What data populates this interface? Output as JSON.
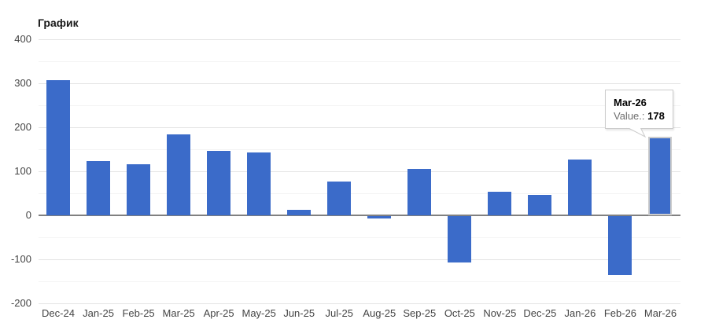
{
  "chart_data": {
    "type": "bar",
    "title": "График",
    "categories": [
      "Dec-24",
      "Jan-25",
      "Feb-25",
      "Mar-25",
      "Apr-25",
      "May-25",
      "Jun-25",
      "Jul-25",
      "Aug-25",
      "Sep-25",
      "Oct-25",
      "Nov-25",
      "Dec-25",
      "Jan-26",
      "Feb-26",
      "Mar-26"
    ],
    "values": [
      307,
      124,
      116,
      184,
      146,
      143,
      12,
      77,
      -5,
      106,
      -106,
      54,
      46,
      126,
      -134,
      178
    ],
    "yticks": [
      400,
      300,
      200,
      100,
      0,
      -100,
      -200
    ],
    "ylim": [
      -200,
      400
    ],
    "grid": true,
    "legend_position": "none",
    "bar_color": "#3b6bc9",
    "hovered_index": 15,
    "tooltip": {
      "label": "Mar-26",
      "value_name": "Value.:",
      "value": "178"
    }
  }
}
